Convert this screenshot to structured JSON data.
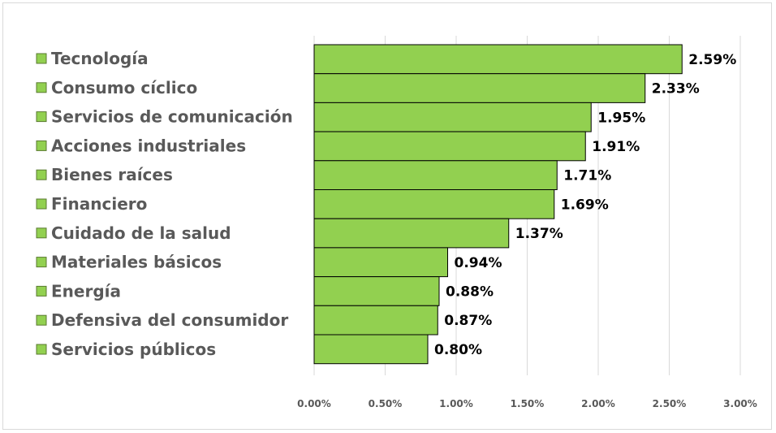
{
  "chart_data": {
    "type": "bar",
    "orientation": "horizontal",
    "categories": [
      "Tecnología",
      "Consumo cíclico",
      "Servicios de comunicación",
      "Acciones industriales",
      "Bienes raíces",
      "Financiero",
      "Cuidado de la salud",
      "Materiales básicos",
      "Energía",
      "Defensiva del consumidor",
      "Servicios públicos"
    ],
    "values": [
      2.59,
      2.33,
      1.95,
      1.91,
      1.71,
      1.69,
      1.37,
      0.94,
      0.88,
      0.87,
      0.8
    ],
    "data_labels": [
      "2.59%",
      "2.33%",
      "1.95%",
      "1.91%",
      "1.71%",
      "1.69%",
      "1.37%",
      "0.94%",
      "0.88%",
      "0.87%",
      "0.80%"
    ],
    "xlim": [
      0,
      3.0
    ],
    "x_ticks": [
      "0.00%",
      "0.50%",
      "1.00%",
      "1.50%",
      "2.00%",
      "2.50%",
      "3.00%"
    ],
    "title": "",
    "xlabel": "",
    "ylabel": "",
    "grid": "vertical",
    "legend_position": "left",
    "colors": {
      "bar": "#92d050",
      "bar_outline": "#000000",
      "legend_text": "#595959",
      "grid": "#d9d9d9"
    }
  }
}
